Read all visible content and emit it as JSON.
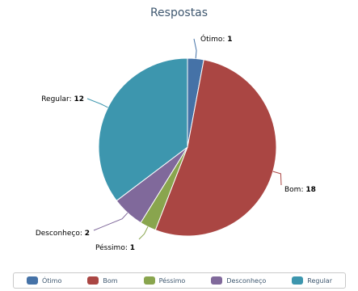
{
  "chart_data": {
    "type": "pie",
    "title": "Respostas",
    "slices": [
      {
        "label": "Ótimo",
        "value": 1,
        "color": "#4572a7"
      },
      {
        "label": "Bom",
        "value": 18,
        "color": "#aa4643"
      },
      {
        "label": "Péssimo",
        "value": 1,
        "color": "#89a54e"
      },
      {
        "label": "Desconheço",
        "value": 2,
        "color": "#80699b"
      },
      {
        "label": "Regular",
        "value": 12,
        "color": "#3d96ae"
      }
    ],
    "legend_position": "bottom"
  }
}
